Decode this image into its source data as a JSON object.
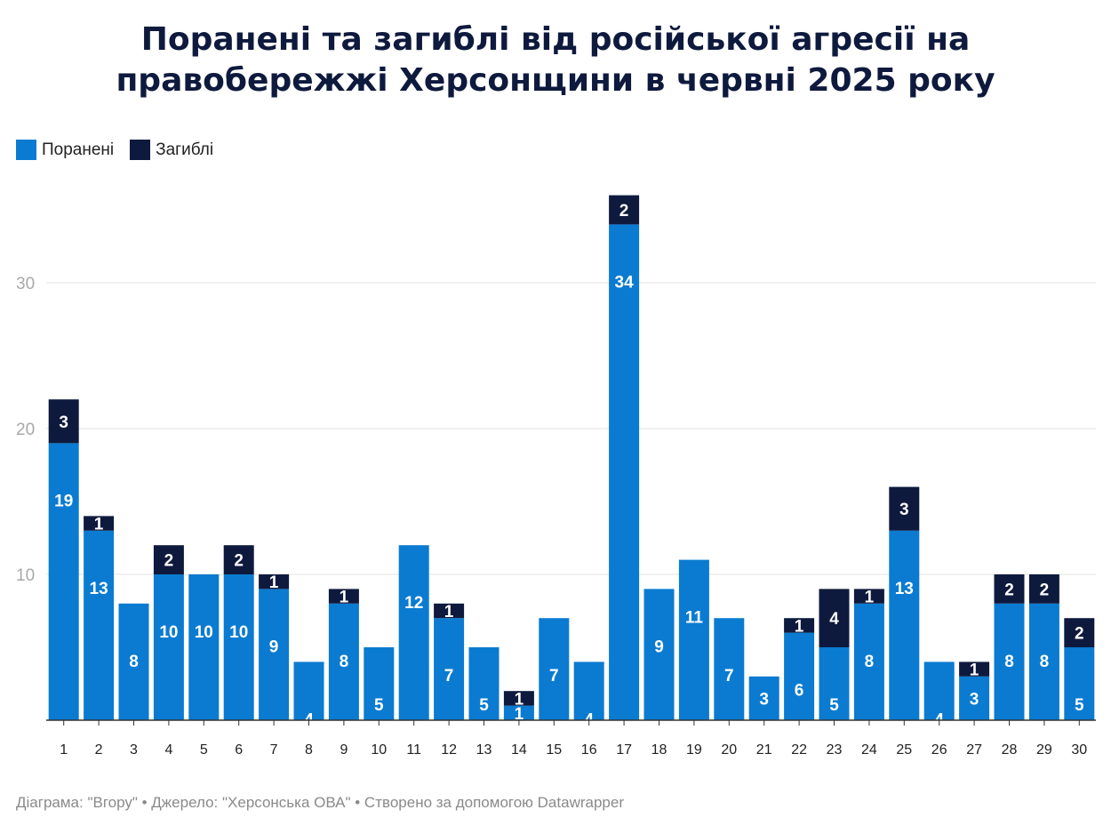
{
  "title_line1": "Поранені та загиблі від російської агресії на",
  "title_line2": "правобережжі Херсонщини в червні 2025 року",
  "footer": "Діаграма: \"Вгору\" • Джерело: \"Херсонська ОВА\" • Створено за допомогою Datawrapper",
  "colors": {
    "injured": "#0a7bd1",
    "killed": "#0e1a3d",
    "grid": "#e3e3e3",
    "axis": "#333333",
    "tick_text": "#a8a8a8"
  },
  "chart_data": {
    "type": "bar",
    "stacked": true,
    "title": "Поранені та загиблі від російської агресії на правобережжі Херсонщини в червні 2025 року",
    "categories": [
      "1",
      "2",
      "3",
      "4",
      "5",
      "6",
      "7",
      "8",
      "9",
      "10",
      "11",
      "12",
      "13",
      "14",
      "15",
      "16",
      "17",
      "18",
      "19",
      "20",
      "21",
      "22",
      "23",
      "24",
      "25",
      "26",
      "27",
      "28",
      "29",
      "30"
    ],
    "series": [
      {
        "name": "Поранені",
        "color": "#0a7bd1",
        "values": [
          19,
          13,
          8,
          10,
          10,
          10,
          9,
          4,
          8,
          5,
          12,
          7,
          5,
          1,
          7,
          4,
          34,
          9,
          11,
          7,
          3,
          6,
          5,
          8,
          13,
          4,
          3,
          8,
          8,
          5
        ]
      },
      {
        "name": "Загиблі",
        "color": "#0e1a3d",
        "values": [
          3,
          1,
          0,
          2,
          0,
          2,
          1,
          0,
          1,
          0,
          0,
          1,
          0,
          1,
          0,
          0,
          2,
          0,
          0,
          0,
          0,
          1,
          4,
          1,
          3,
          0,
          1,
          2,
          2,
          2
        ]
      }
    ],
    "yticks": [
      10,
      20,
      30
    ],
    "ylim": [
      0,
      36
    ],
    "grid": true,
    "legend_position": "top-left",
    "xlabel": "",
    "ylabel": ""
  }
}
